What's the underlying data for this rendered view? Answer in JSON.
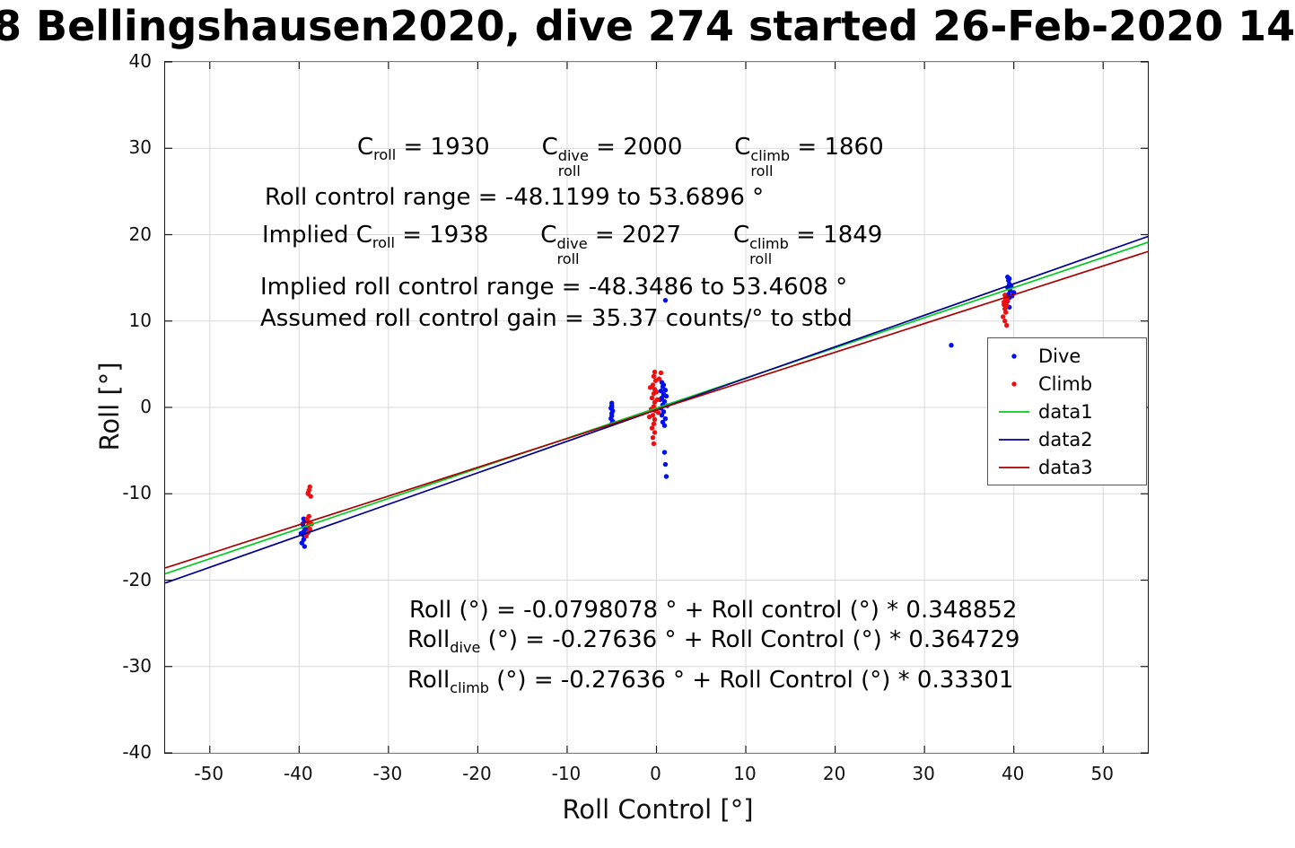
{
  "title": "8 Bellingshausen2020, dive 274 started 26-Feb-2020 14",
  "axes": {
    "xlabel": "Roll Control [°]",
    "ylabel": "Roll [°]"
  },
  "annotations": {
    "line1": [
      {
        "text": "C"
      },
      {
        "sub": "roll"
      },
      {
        "text": " = 1930       "
      },
      {
        "text": "C"
      },
      {
        "sup": "dive",
        "sub": "roll"
      },
      {
        "text": " = 2000       "
      },
      {
        "text": "C"
      },
      {
        "sup": "climb",
        "sub": "roll"
      },
      {
        "text": " = 1860"
      }
    ],
    "line2": [
      {
        "text": "Roll control range = -48.1199 to 53.6896 °"
      }
    ],
    "line3": [
      {
        "text": "Implied C"
      },
      {
        "sub": "roll"
      },
      {
        "text": " = 1938       "
      },
      {
        "text": "C"
      },
      {
        "sup": "dive",
        "sub": "roll"
      },
      {
        "text": " = 2027       "
      },
      {
        "text": "C"
      },
      {
        "sup": "climb",
        "sub": "roll"
      },
      {
        "text": " = 1849"
      }
    ],
    "line4": [
      {
        "text": "Implied roll control range = -48.3486 to 53.4608 °"
      }
    ],
    "line5": [
      {
        "text": "Assumed roll control gain = 35.37 counts/° to stbd"
      }
    ],
    "line6": [
      {
        "text": "Roll (°) = -0.0798078 ° + Roll control (°) * 0.348852"
      }
    ],
    "line7": [
      {
        "text": "Roll"
      },
      {
        "sub": "dive"
      },
      {
        "text": " (°) = -0.27636 ° + Roll Control (°) * 0.364729"
      }
    ],
    "line8": [
      {
        "text": "Roll"
      },
      {
        "sub": "climb"
      },
      {
        "text": " (°) = -0.27636 ° + Roll Control (°) * 0.33301"
      }
    ]
  },
  "chart_data": {
    "type": "scatter",
    "title": "8 Bellingshausen2020, dive 274 started 26-Feb-2020 14",
    "xlabel": "Roll Control [°]",
    "ylabel": "Roll [°]",
    "xlim": [
      -55,
      55
    ],
    "ylim": [
      -40,
      40
    ],
    "xticks": [
      -50,
      -40,
      -30,
      -20,
      -10,
      0,
      10,
      20,
      30,
      40,
      50
    ],
    "yticks": [
      -40,
      -30,
      -20,
      -10,
      0,
      10,
      20,
      30,
      40
    ],
    "grid": true,
    "grid_color": "#d9d9d9",
    "axis_color": "#1a1a1a",
    "legend_position": "right-middle",
    "series": [
      {
        "name": "Dive",
        "type": "scatter",
        "color": "#0010ee",
        "points": [
          [
            -39.5,
            -12.9
          ],
          [
            -39.4,
            -13.2
          ],
          [
            -39.6,
            -13.5
          ],
          [
            -39.5,
            -13.8
          ],
          [
            -39.3,
            -14.1
          ],
          [
            -39.5,
            -14.4
          ],
          [
            -39.6,
            -14.7
          ],
          [
            -39.4,
            -15.0
          ],
          [
            -39.5,
            -15.3
          ],
          [
            -39.7,
            -15.7
          ],
          [
            -39.4,
            -16.1
          ],
          [
            -39.2,
            -13.9
          ],
          [
            -39.8,
            -14.6
          ],
          [
            -5.0,
            0.5
          ],
          [
            -5.0,
            0.2
          ],
          [
            -5.1,
            -0.1
          ],
          [
            -4.9,
            -0.4
          ],
          [
            -5.0,
            -0.7
          ],
          [
            -5.0,
            -1.0
          ],
          [
            -5.1,
            -1.3
          ],
          [
            -4.9,
            -1.6
          ],
          [
            -5.0,
            -1.9
          ],
          [
            -5.0,
            0.0
          ],
          [
            0.6,
            2.9
          ],
          [
            0.7,
            2.4
          ],
          [
            0.5,
            1.9
          ],
          [
            0.8,
            1.5
          ],
          [
            0.6,
            1.1
          ],
          [
            0.9,
            0.7
          ],
          [
            0.7,
            0.3
          ],
          [
            0.5,
            -0.1
          ],
          [
            0.8,
            -0.5
          ],
          [
            0.6,
            -0.9
          ],
          [
            1.0,
            -1.3
          ],
          [
            0.7,
            -1.7
          ],
          [
            0.9,
            -2.1
          ],
          [
            1.1,
            1.3
          ],
          [
            1.2,
            0.2
          ],
          [
            0.4,
            0.9
          ],
          [
            1.0,
            2.0
          ],
          [
            0.8,
            2.6
          ],
          [
            1.0,
            12.4
          ],
          [
            0.9,
            -5.2
          ],
          [
            1.0,
            -6.6
          ],
          [
            1.1,
            -8.0
          ],
          [
            33.0,
            7.2
          ],
          [
            39.3,
            15.1
          ],
          [
            39.4,
            14.7
          ],
          [
            39.5,
            14.3
          ],
          [
            39.3,
            13.9
          ],
          [
            39.6,
            13.5
          ],
          [
            39.4,
            13.1
          ],
          [
            39.5,
            12.7
          ],
          [
            39.3,
            12.3
          ],
          [
            39.7,
            14.0
          ],
          [
            39.5,
            14.9
          ],
          [
            40.0,
            13.3
          ],
          [
            39.8,
            12.9
          ],
          [
            39.5,
            11.6
          ]
        ]
      },
      {
        "name": "Climb",
        "type": "scatter",
        "color": "#ee1010",
        "points": [
          [
            -38.8,
            -9.2
          ],
          [
            -38.9,
            -9.6
          ],
          [
            -39.0,
            -10.0
          ],
          [
            -38.7,
            -10.3
          ],
          [
            -39.1,
            -12.9
          ],
          [
            -38.9,
            -13.3
          ],
          [
            -39.0,
            -13.7
          ],
          [
            -38.8,
            -14.1
          ],
          [
            -39.0,
            -14.5
          ],
          [
            -39.2,
            -14.9
          ],
          [
            -38.6,
            -13.5
          ],
          [
            -38.9,
            -12.6
          ],
          [
            -39.0,
            -9.9
          ],
          [
            -0.2,
            4.1
          ],
          [
            -0.3,
            3.6
          ],
          [
            -0.1,
            3.1
          ],
          [
            -0.4,
            2.6
          ],
          [
            -0.2,
            2.1
          ],
          [
            -0.3,
            1.6
          ],
          [
            -0.5,
            1.1
          ],
          [
            -0.2,
            0.6
          ],
          [
            -0.3,
            0.1
          ],
          [
            -0.1,
            -0.4
          ],
          [
            -0.4,
            -0.9
          ],
          [
            -0.2,
            -1.4
          ],
          [
            -0.3,
            -1.9
          ],
          [
            -0.5,
            -2.4
          ],
          [
            -0.2,
            -2.9
          ],
          [
            -0.4,
            -3.5
          ],
          [
            -0.3,
            -4.2
          ],
          [
            0.1,
            0.9
          ],
          [
            0.2,
            -0.6
          ],
          [
            0.0,
            1.8
          ],
          [
            -0.6,
            -0.2
          ],
          [
            -0.7,
            2.3
          ],
          [
            0.3,
            3.3
          ],
          [
            -0.8,
            -1.1
          ],
          [
            0.5,
            4.0
          ],
          [
            39.0,
            13.0
          ],
          [
            39.1,
            12.6
          ],
          [
            38.9,
            12.2
          ],
          [
            39.2,
            11.8
          ],
          [
            39.0,
            11.4
          ],
          [
            39.1,
            11.0
          ],
          [
            38.8,
            10.5
          ],
          [
            39.0,
            10.0
          ],
          [
            39.2,
            9.5
          ],
          [
            38.9,
            11.9
          ],
          [
            39.3,
            12.4
          ]
        ]
      },
      {
        "name": "data1",
        "type": "line",
        "color": "#00cc22",
        "intercept": -0.0798078,
        "slope": 0.348852
      },
      {
        "name": "data2",
        "type": "line",
        "color": "#000090",
        "intercept": -0.27636,
        "slope": 0.364729
      },
      {
        "name": "data3",
        "type": "line",
        "color": "#aa0000",
        "intercept": -0.27636,
        "slope": 0.33301
      }
    ]
  }
}
